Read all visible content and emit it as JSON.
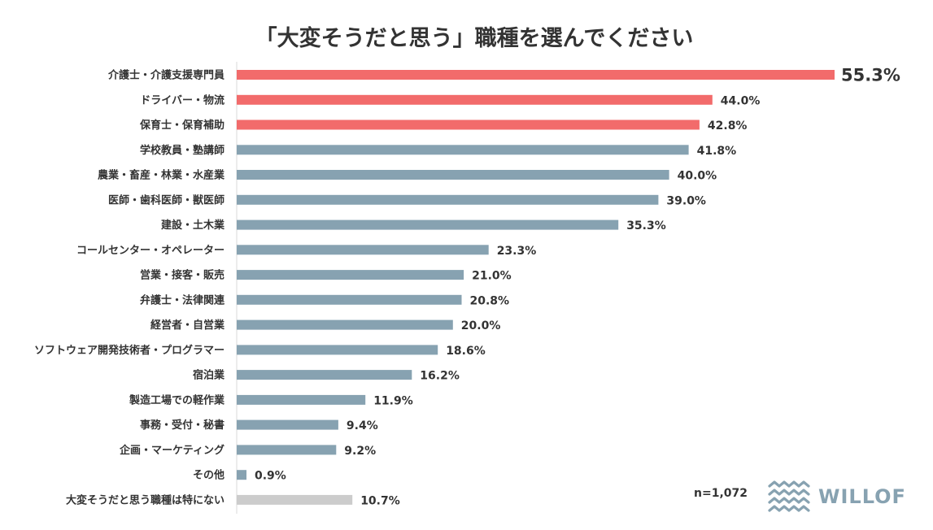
{
  "colors": {
    "highlight": "#f26b6b",
    "normal": "#87a2b1",
    "none": "#cccccc",
    "axis": "#d9d9d9",
    "text": "#333333",
    "logo": "#87a2b1"
  },
  "sample_size": "n=1,072",
  "logo": {
    "text": "WILLOF"
  },
  "chart_data": {
    "type": "bar",
    "orientation": "horizontal",
    "title": "「大変そうだと思う」職種を選んでください",
    "xlabel": "",
    "ylabel": "",
    "xlim": [
      0,
      55.3
    ],
    "unit": "%",
    "categories": [
      "介護士・介護支援専門員",
      "ドライバー・物流",
      "保育士・保育補助",
      "学校教員・塾講師",
      "農業・畜産・林業・水産業",
      "医師・歯科医師・獣医師",
      "建設・土木業",
      "コールセンター・オペレーター",
      "営業・接客・販売",
      "弁護士・法律関連",
      "経営者・自営業",
      "ソフトウェア開発技術者・プログラマー",
      "宿泊業",
      "製造工場での軽作業",
      "事務・受付・秘書",
      "企画・マーケティング",
      "その他",
      "大変そうだと思う職種は特にない"
    ],
    "values": [
      55.3,
      44.0,
      42.8,
      41.8,
      40.0,
      39.0,
      35.3,
      23.3,
      21.0,
      20.8,
      20.0,
      18.6,
      16.2,
      11.9,
      9.4,
      9.2,
      0.9,
      10.7
    ],
    "value_labels": [
      "55.3%",
      "44.0%",
      "42.8%",
      "41.8%",
      "40.0%",
      "39.0%",
      "35.3%",
      "23.3%",
      "21.0%",
      "20.8%",
      "20.0%",
      "18.6%",
      "16.2%",
      "11.9%",
      "9.4%",
      "9.2%",
      "0.9%",
      "10.7%"
    ],
    "bar_groups": [
      "highlight",
      "highlight",
      "highlight",
      "normal",
      "normal",
      "normal",
      "normal",
      "normal",
      "normal",
      "normal",
      "normal",
      "normal",
      "normal",
      "normal",
      "normal",
      "normal",
      "normal",
      "none"
    ],
    "emphasized_label_index": 0,
    "legend": "none",
    "grid": false
  }
}
